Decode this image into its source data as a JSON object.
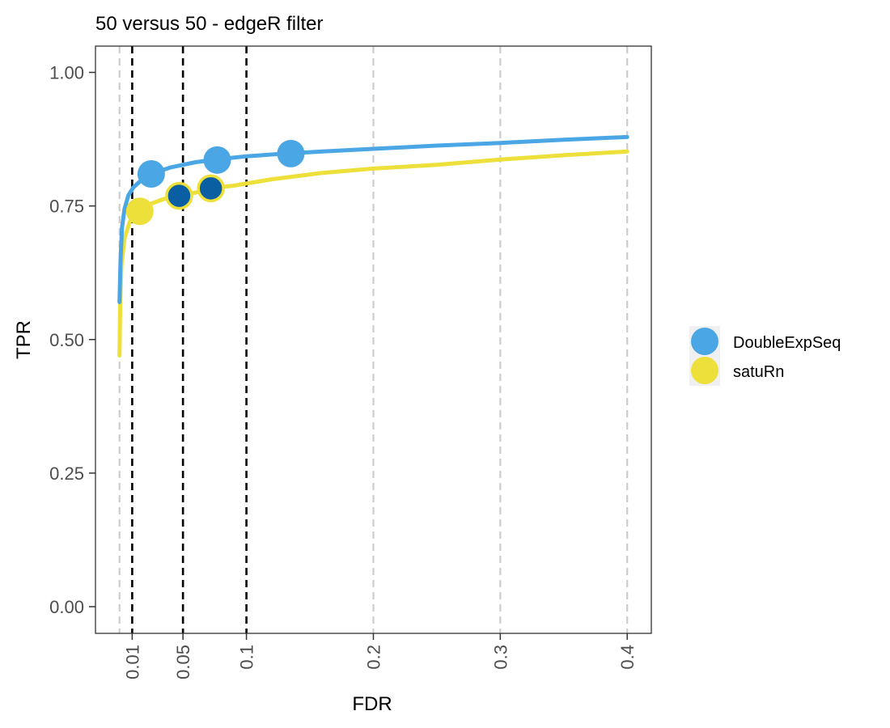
{
  "chart_data": {
    "type": "line",
    "title": "50 versus 50 - edgeR filter",
    "xlabel": "FDR",
    "ylabel": "TPR",
    "xlim": [
      0,
      0.4
    ],
    "ylim": [
      0,
      1
    ],
    "x_ticks": [
      {
        "value": 0.01,
        "label": "0.01"
      },
      {
        "value": 0.05,
        "label": "0.05"
      },
      {
        "value": 0.1,
        "label": "0.1"
      },
      {
        "value": 0.2,
        "label": "0.2"
      },
      {
        "value": 0.3,
        "label": "0.3"
      },
      {
        "value": 0.4,
        "label": "0.4"
      }
    ],
    "y_ticks": [
      {
        "value": 0.0,
        "label": "0.00"
      },
      {
        "value": 0.25,
        "label": "0.25"
      },
      {
        "value": 0.5,
        "label": "0.50"
      },
      {
        "value": 0.75,
        "label": "0.75"
      },
      {
        "value": 1.0,
        "label": "1.00"
      }
    ],
    "fdr_thresholds": [
      0.01,
      0.05,
      0.1
    ],
    "grid": true,
    "legend_position": "right",
    "series": [
      {
        "name": "DoubleExpSeq",
        "color": "#4aa6e4",
        "curve": [
          [
            0.0,
            0.57
          ],
          [
            0.0008,
            0.65
          ],
          [
            0.002,
            0.71
          ],
          [
            0.004,
            0.745
          ],
          [
            0.007,
            0.77
          ],
          [
            0.011,
            0.785
          ],
          [
            0.018,
            0.8
          ],
          [
            0.025,
            0.81
          ],
          [
            0.04,
            0.822
          ],
          [
            0.06,
            0.832
          ],
          [
            0.08,
            0.838
          ],
          [
            0.1,
            0.843
          ],
          [
            0.13,
            0.848
          ],
          [
            0.16,
            0.852
          ],
          [
            0.2,
            0.857
          ],
          [
            0.25,
            0.863
          ],
          [
            0.3,
            0.868
          ],
          [
            0.35,
            0.874
          ],
          [
            0.4,
            0.879
          ]
        ],
        "points": [
          {
            "fdr": 0.025,
            "tpr": 0.81,
            "threshold": 0.01,
            "passes": false
          },
          {
            "fdr": 0.077,
            "tpr": 0.836,
            "threshold": 0.05,
            "passes": false
          },
          {
            "fdr": 0.135,
            "tpr": 0.848,
            "threshold": 0.1,
            "passes": false
          }
        ]
      },
      {
        "name": "satuRn",
        "color": "#ede03a",
        "curve": [
          [
            0.0,
            0.47
          ],
          [
            0.0005,
            0.56
          ],
          [
            0.0015,
            0.64
          ],
          [
            0.004,
            0.69
          ],
          [
            0.008,
            0.72
          ],
          [
            0.012,
            0.738
          ],
          [
            0.02,
            0.75
          ],
          [
            0.035,
            0.763
          ],
          [
            0.047,
            0.769
          ],
          [
            0.06,
            0.775
          ],
          [
            0.072,
            0.783
          ],
          [
            0.09,
            0.788
          ],
          [
            0.12,
            0.8
          ],
          [
            0.16,
            0.812
          ],
          [
            0.2,
            0.82
          ],
          [
            0.25,
            0.827
          ],
          [
            0.3,
            0.837
          ],
          [
            0.35,
            0.845
          ],
          [
            0.4,
            0.852
          ]
        ],
        "points": [
          {
            "fdr": 0.016,
            "tpr": 0.74,
            "threshold": 0.01,
            "passes": false
          },
          {
            "fdr": 0.047,
            "tpr": 0.769,
            "threshold": 0.05,
            "passes": true
          },
          {
            "fdr": 0.072,
            "tpr": 0.783,
            "threshold": 0.1,
            "passes": true
          }
        ]
      }
    ],
    "passing_point_fill": "#0a5fa3",
    "threshold_line_color": "#000000",
    "grid_line_color": "#cccccc",
    "legend_key_background": "#f0f0f0"
  }
}
